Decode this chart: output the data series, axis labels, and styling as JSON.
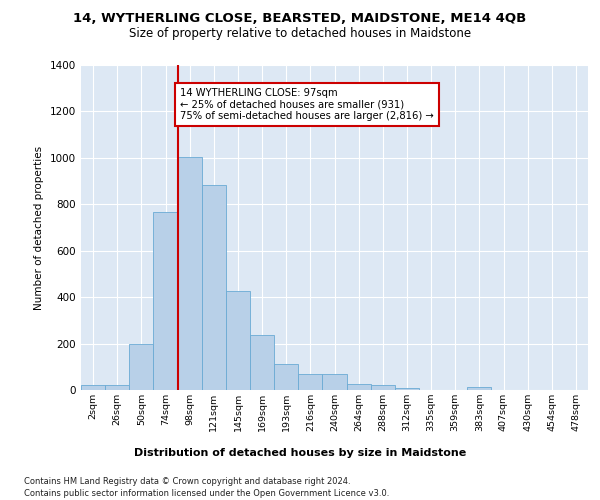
{
  "title": "14, WYTHERLING CLOSE, BEARSTED, MAIDSTONE, ME14 4QB",
  "subtitle": "Size of property relative to detached houses in Maidstone",
  "xlabel": "Distribution of detached houses by size in Maidstone",
  "ylabel": "Number of detached properties",
  "footnote1": "Contains HM Land Registry data © Crown copyright and database right 2024.",
  "footnote2": "Contains public sector information licensed under the Open Government Licence v3.0.",
  "bar_labels": [
    "2sqm",
    "26sqm",
    "50sqm",
    "74sqm",
    "98sqm",
    "121sqm",
    "145sqm",
    "169sqm",
    "193sqm",
    "216sqm",
    "240sqm",
    "264sqm",
    "288sqm",
    "312sqm",
    "335sqm",
    "359sqm",
    "383sqm",
    "407sqm",
    "430sqm",
    "454sqm",
    "478sqm"
  ],
  "bar_values": [
    20,
    20,
    200,
    765,
    1005,
    885,
    425,
    235,
    110,
    70,
    70,
    27,
    22,
    10,
    0,
    0,
    12,
    0,
    0,
    0,
    0
  ],
  "bar_color": "#b8d0e8",
  "bar_edge_color": "#6aaad4",
  "vline_color": "#cc0000",
  "ylim": [
    0,
    1400
  ],
  "yticks": [
    0,
    200,
    400,
    600,
    800,
    1000,
    1200,
    1400
  ],
  "annotation_text": "14 WYTHERLING CLOSE: 97sqm\n← 25% of detached houses are smaller (931)\n75% of semi-detached houses are larger (2,816) →",
  "annotation_box_color": "#ffffff",
  "annotation_box_edge": "#cc0000",
  "bg_color": "#dde8f4",
  "grid_color": "#ffffff",
  "title_fontsize": 9.5,
  "subtitle_fontsize": 8.5
}
